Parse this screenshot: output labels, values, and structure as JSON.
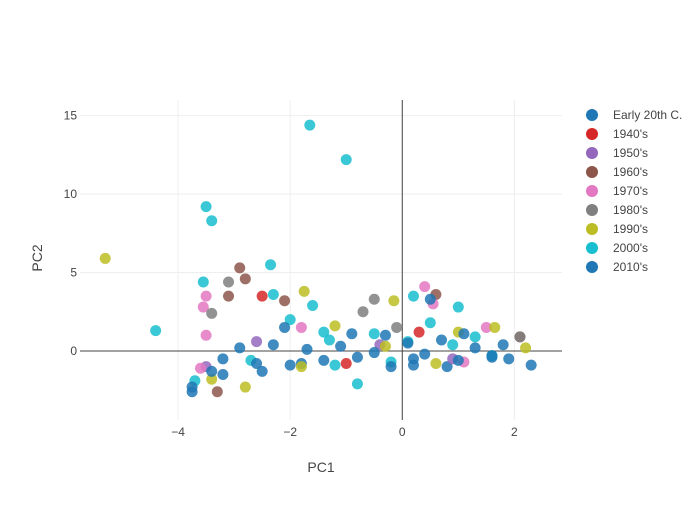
{
  "chart_data": {
    "type": "scatter",
    "title": "",
    "xlabel": "PC1",
    "ylabel": "PC2",
    "xlim": [
      -5.75,
      2.85
    ],
    "ylim": [
      -4.4,
      16.0
    ],
    "xticks": [
      -4,
      -2,
      0,
      2
    ],
    "yticks": [
      0,
      5,
      10,
      15
    ],
    "xtick_labels": [
      "−4",
      "−2",
      "0",
      "2"
    ],
    "ytick_labels": [
      "0",
      "5",
      "10",
      "15"
    ],
    "grid": true,
    "zeroline": true,
    "legend_position": "right",
    "series": [
      {
        "name": "Early 20th C.",
        "color": "#1f77b4",
        "points": [
          [
            -3.2,
            -1.5
          ],
          [
            0.2,
            -0.5
          ],
          [
            1.6,
            -0.4
          ],
          [
            -1.8,
            -0.8
          ],
          [
            0.8,
            -1.0
          ]
        ]
      },
      {
        "name": "1940's",
        "color": "#d62728",
        "points": [
          [
            -2.5,
            3.5
          ],
          [
            0.3,
            1.2
          ],
          [
            -1.0,
            -0.8
          ]
        ]
      },
      {
        "name": "1950's",
        "color": "#9467bd",
        "points": [
          [
            -3.5,
            -1.0
          ],
          [
            -2.6,
            0.6
          ],
          [
            0.9,
            -0.5
          ],
          [
            -0.4,
            0.4
          ]
        ]
      },
      {
        "name": "1960's",
        "color": "#8c564b",
        "points": [
          [
            -2.9,
            5.3
          ],
          [
            -2.8,
            4.6
          ],
          [
            -3.1,
            3.5
          ],
          [
            -3.3,
            -2.6
          ],
          [
            -2.1,
            3.2
          ],
          [
            0.6,
            3.6
          ],
          [
            2.1,
            0.9
          ]
        ]
      },
      {
        "name": "1970's",
        "color": "#e377c2",
        "points": [
          [
            -3.5,
            3.5
          ],
          [
            -3.55,
            2.8
          ],
          [
            -3.5,
            1.0
          ],
          [
            -3.6,
            -1.1
          ],
          [
            0.4,
            4.1
          ],
          [
            0.55,
            3.0
          ],
          [
            1.5,
            1.5
          ],
          [
            -1.8,
            1.5
          ],
          [
            1.1,
            -0.7
          ]
        ]
      },
      {
        "name": "1980's",
        "color": "#7f7f7f",
        "points": [
          [
            -3.1,
            4.4
          ],
          [
            -0.5,
            3.3
          ],
          [
            -0.7,
            2.5
          ],
          [
            2.1,
            0.9
          ],
          [
            -3.4,
            2.4
          ],
          [
            -0.1,
            1.5
          ]
        ]
      },
      {
        "name": "1990's",
        "color": "#bcbd22",
        "points": [
          [
            -5.3,
            5.9
          ],
          [
            -1.75,
            3.8
          ],
          [
            -0.15,
            3.2
          ],
          [
            -3.4,
            -1.8
          ],
          [
            -2.8,
            -2.3
          ],
          [
            1.65,
            1.5
          ],
          [
            2.2,
            0.2
          ],
          [
            -1.2,
            1.6
          ],
          [
            -1.8,
            -1.0
          ],
          [
            0.6,
            -0.8
          ],
          [
            -0.3,
            0.3
          ],
          [
            1.0,
            1.2
          ]
        ]
      },
      {
        "name": "2000's",
        "color": "#17becf",
        "points": [
          [
            -1.65,
            14.4
          ],
          [
            -1.0,
            12.2
          ],
          [
            -3.5,
            9.2
          ],
          [
            -3.4,
            8.3
          ],
          [
            -2.35,
            5.5
          ],
          [
            -3.55,
            4.4
          ],
          [
            -4.4,
            1.3
          ],
          [
            -2.3,
            3.6
          ],
          [
            -1.6,
            2.9
          ],
          [
            0.2,
            3.5
          ],
          [
            1.0,
            2.8
          ],
          [
            -0.8,
            -2.1
          ],
          [
            -3.7,
            -1.9
          ],
          [
            -1.2,
            -0.9
          ],
          [
            -0.5,
            1.1
          ],
          [
            0.9,
            0.4
          ],
          [
            1.6,
            -0.3
          ],
          [
            -2.0,
            2.0
          ],
          [
            -1.4,
            1.2
          ],
          [
            0.1,
            0.6
          ],
          [
            -0.2,
            -0.7
          ],
          [
            -2.7,
            -0.6
          ],
          [
            -1.3,
            0.7
          ],
          [
            0.5,
            1.8
          ],
          [
            1.3,
            0.9
          ]
        ]
      },
      {
        "name": "2010's",
        "color": "#1f77b4",
        "points": [
          [
            -3.75,
            -2.6
          ],
          [
            -3.75,
            -2.3
          ],
          [
            -3.4,
            -1.3
          ],
          [
            -3.2,
            -0.5
          ],
          [
            -2.9,
            0.2
          ],
          [
            -2.6,
            -0.8
          ],
          [
            -2.3,
            0.4
          ],
          [
            -2.0,
            -0.9
          ],
          [
            -1.7,
            0.1
          ],
          [
            -1.4,
            -0.6
          ],
          [
            -1.1,
            0.3
          ],
          [
            -0.8,
            -0.4
          ],
          [
            -0.5,
            -0.1
          ],
          [
            -0.2,
            -1.0
          ],
          [
            0.1,
            0.5
          ],
          [
            0.4,
            -0.2
          ],
          [
            0.7,
            0.7
          ],
          [
            1.0,
            -0.6
          ],
          [
            1.3,
            0.2
          ],
          [
            1.6,
            -0.3
          ],
          [
            1.9,
            -0.5
          ],
          [
            2.3,
            -0.9
          ],
          [
            0.5,
            3.3
          ],
          [
            -0.9,
            1.1
          ],
          [
            -2.1,
            1.5
          ],
          [
            1.1,
            1.1
          ],
          [
            -0.3,
            1.0
          ],
          [
            0.2,
            -0.9
          ],
          [
            -2.5,
            -1.3
          ],
          [
            1.8,
            0.4
          ]
        ]
      }
    ]
  }
}
